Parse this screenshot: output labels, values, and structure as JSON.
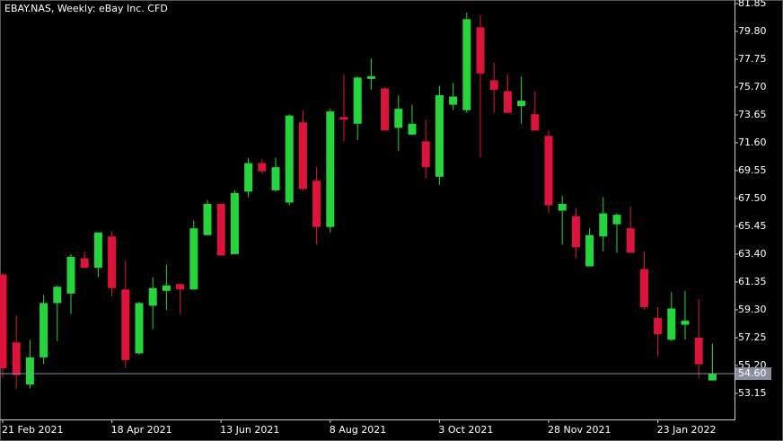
{
  "chart_data": {
    "type": "candlestick",
    "title": "EBAY.NAS, Weekly:  eBay Inc. CFD",
    "categories": [
      "21 Feb 2021",
      null,
      null,
      null,
      null,
      null,
      null,
      null,
      "18 Apr 2021",
      null,
      null,
      null,
      null,
      null,
      null,
      null,
      "13 Jun 2021",
      null,
      null,
      null,
      null,
      null,
      null,
      null,
      "8 Aug 2021",
      null,
      null,
      null,
      null,
      null,
      null,
      null,
      "3 Oct 2021",
      null,
      null,
      null,
      null,
      null,
      null,
      null,
      "28 Nov 2021",
      null,
      null,
      null,
      null,
      null,
      null,
      null,
      "23 Jan 2022",
      null,
      null,
      null,
      null
    ],
    "open": [
      61.9,
      56.9,
      53.8,
      55.8,
      59.8,
      60.5,
      63.1,
      62.4,
      64.7,
      60.8,
      56.1,
      59.6,
      60.7,
      61.2,
      60.8,
      64.8,
      67.1,
      63.4,
      68.0,
      70.1,
      68.1,
      67.2,
      73.1,
      68.8,
      65.4,
      73.5,
      73.0,
      76.3,
      75.6,
      72.7,
      72.2,
      71.7,
      69.1,
      74.4,
      74.0,
      80.1,
      76.2,
      75.4,
      74.3,
      73.7,
      72.1,
      66.6,
      66.2,
      62.5,
      64.7,
      65.6,
      65.3,
      62.3,
      58.7,
      57.1,
      58.2,
      57.25,
      54.1
    ],
    "high": [
      62.0,
      58.9,
      57.1,
      60.4,
      61.1,
      63.4,
      63.6,
      65.0,
      65.1,
      62.9,
      59.9,
      61.7,
      62.6,
      61.2,
      65.9,
      67.4,
      67.1,
      68.1,
      70.5,
      70.4,
      70.5,
      73.7,
      74.0,
      69.8,
      74.1,
      76.6,
      76.5,
      77.8,
      75.7,
      75.1,
      74.4,
      73.3,
      75.8,
      76.0,
      81.2,
      81.0,
      77.5,
      76.6,
      76.5,
      75.4,
      72.5,
      67.7,
      66.8,
      65.3,
      67.6,
      66.4,
      66.9,
      63.6,
      59.5,
      60.6,
      60.7,
      60.1,
      56.8
    ],
    "low": [
      54.3,
      53.5,
      53.5,
      55.3,
      57.0,
      59.0,
      62.4,
      61.7,
      60.3,
      55.0,
      56.0,
      57.9,
      59.3,
      59.0,
      60.8,
      64.8,
      63.3,
      63.4,
      67.6,
      69.3,
      68.0,
      67.0,
      68.1,
      64.1,
      65.0,
      71.7,
      71.8,
      75.5,
      72.5,
      71.0,
      72.2,
      69.0,
      68.5,
      74.0,
      73.8,
      70.5,
      73.8,
      73.8,
      73.0,
      72.5,
      66.4,
      64.1,
      63.1,
      62.5,
      63.6,
      63.5,
      63.5,
      59.3,
      55.9,
      57.0,
      57.1,
      54.3,
      54.1
    ],
    "close": [
      55.0,
      54.5,
      55.8,
      59.8,
      61.0,
      63.2,
      62.4,
      65.0,
      60.9,
      55.6,
      59.8,
      60.9,
      61.1,
      60.8,
      65.3,
      67.1,
      63.3,
      67.9,
      70.1,
      69.5,
      69.8,
      73.6,
      68.2,
      65.4,
      73.9,
      73.3,
      76.4,
      76.5,
      72.5,
      74.1,
      73.0,
      69.8,
      75.1,
      75.0,
      80.7,
      76.7,
      75.5,
      73.8,
      74.7,
      72.5,
      67.0,
      67.1,
      63.9,
      64.8,
      66.4,
      66.3,
      63.5,
      59.5,
      57.5,
      59.4,
      58.5,
      55.3,
      54.6
    ],
    "up_color": "#26d43c",
    "down_color": "#dc143c",
    "current_price": {
      "value": 54.6,
      "label": "54.60"
    },
    "ylim": [
      51.23,
      82.11
    ],
    "yticks": [
      53.15,
      {
        "value": 55.2,
        "label": "55.20"
      },
      57.25,
      {
        "value": 59.3,
        "label": "59.30"
      },
      61.35,
      {
        "value": 63.4,
        "label": "63.40"
      },
      65.45,
      {
        "value": 67.5,
        "label": "67.50"
      },
      69.55,
      {
        "value": 71.6,
        "label": "71.60"
      },
      73.65,
      {
        "value": 75.7,
        "label": "75.70"
      },
      77.75,
      {
        "value": 79.8,
        "label": "79.80"
      },
      81.85
    ],
    "grid": false
  }
}
